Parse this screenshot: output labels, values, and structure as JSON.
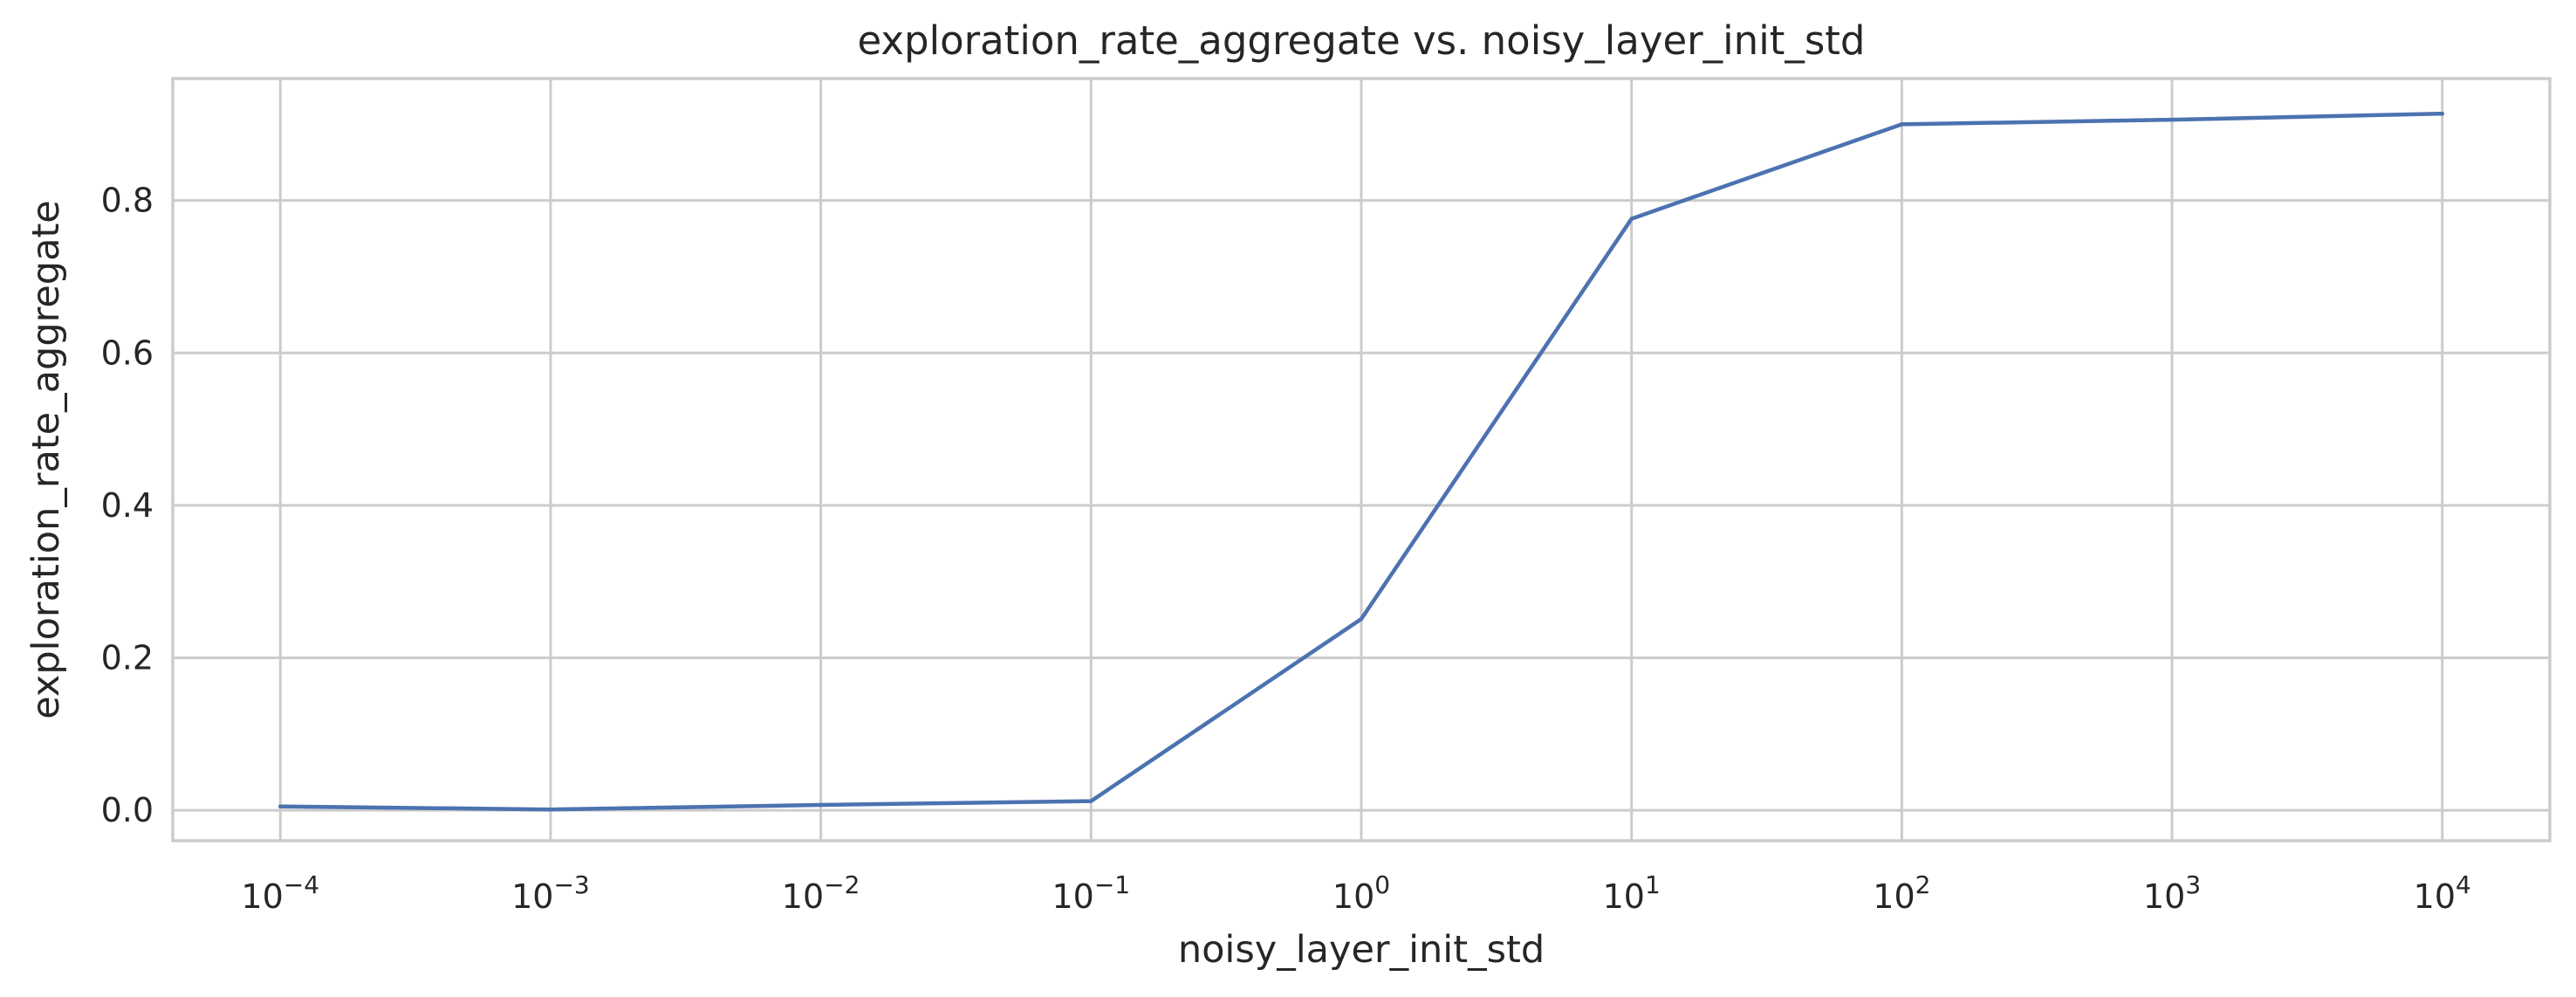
{
  "chart_data": {
    "type": "line",
    "title": "exploration_rate_aggregate vs. noisy_layer_init_std",
    "xlabel": "noisy_layer_init_std",
    "ylabel": "exploration_rate_aggregate",
    "xscale": "log",
    "xlim": [
      4e-05,
      25000
    ],
    "ylim": [
      -0.04,
      0.96
    ],
    "grid": true,
    "x_ticks": [
      {
        "value": 0.0001,
        "base": "10",
        "exp": "−4"
      },
      {
        "value": 0.001,
        "base": "10",
        "exp": "−3"
      },
      {
        "value": 0.01,
        "base": "10",
        "exp": "−2"
      },
      {
        "value": 0.1,
        "base": "10",
        "exp": "−1"
      },
      {
        "value": 1,
        "base": "10",
        "exp": "0"
      },
      {
        "value": 10,
        "base": "10",
        "exp": "1"
      },
      {
        "value": 100,
        "base": "10",
        "exp": "2"
      },
      {
        "value": 1000,
        "base": "10",
        "exp": "3"
      },
      {
        "value": 10000,
        "base": "10",
        "exp": "4"
      }
    ],
    "y_ticks": [
      {
        "value": 0.0,
        "label": "0.0"
      },
      {
        "value": 0.2,
        "label": "0.2"
      },
      {
        "value": 0.4,
        "label": "0.4"
      },
      {
        "value": 0.6,
        "label": "0.6"
      },
      {
        "value": 0.8,
        "label": "0.8"
      }
    ],
    "series": [
      {
        "color": "#4c72b0",
        "x": [
          0.0001,
          0.001,
          0.01,
          0.1,
          1,
          10,
          100,
          1000,
          10000
        ],
        "y": [
          0.005,
          0.001,
          0.007,
          0.012,
          0.251,
          0.776,
          0.9,
          0.906,
          0.914
        ]
      }
    ]
  }
}
